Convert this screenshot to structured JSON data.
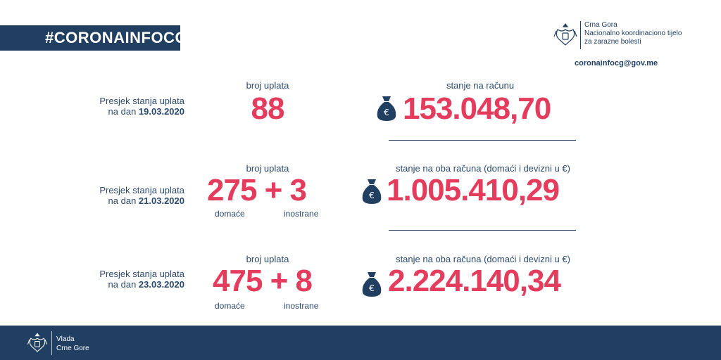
{
  "hashtag": "#CORONAINFOCG",
  "org": {
    "line1": "Crna Gora",
    "line2": "Nacionalno koordinaciono tijelo",
    "line3": "za zarazne bolesti"
  },
  "email": "coronainfocg@gov.me",
  "rows": [
    {
      "presjek_prefix": "Presjek stanja uplata",
      "presjek_date_prefix": "na dan",
      "date": "19.03.2020",
      "count_label": "broj uplata",
      "count": "88",
      "account_label": "stanje na računu",
      "amount": "153.048,70"
    },
    {
      "presjek_prefix": "Presjek stanja uplata",
      "presjek_date_prefix": "na dan",
      "date": "21.03.2020",
      "count_label": "broj uplata",
      "count": "275 + 3",
      "domestic_label": "domaće",
      "foreign_label": "inostrane",
      "account_label": "stanje na oba računa (domaći i devizni u €)",
      "amount": "1.005.410,29"
    },
    {
      "presjek_prefix": "Presjek stanja uplata",
      "presjek_date_prefix": "na dan",
      "date": "23.03.2020",
      "count_label": "broj uplata",
      "count": "475 + 8",
      "domestic_label": "domaće",
      "foreign_label": "inostrane",
      "account_label": "stanje na oba računa (domaći i devizni u €)",
      "amount": "2.224.140,34"
    }
  ],
  "footer": {
    "line1": "Vlada",
    "line2": "Crne Gore"
  },
  "colors": {
    "navy": "#203f61",
    "accent": "#e43c5c"
  },
  "icons": {
    "money_bag": "money-bag-euro-icon",
    "crest": "coat-of-arms-icon"
  }
}
